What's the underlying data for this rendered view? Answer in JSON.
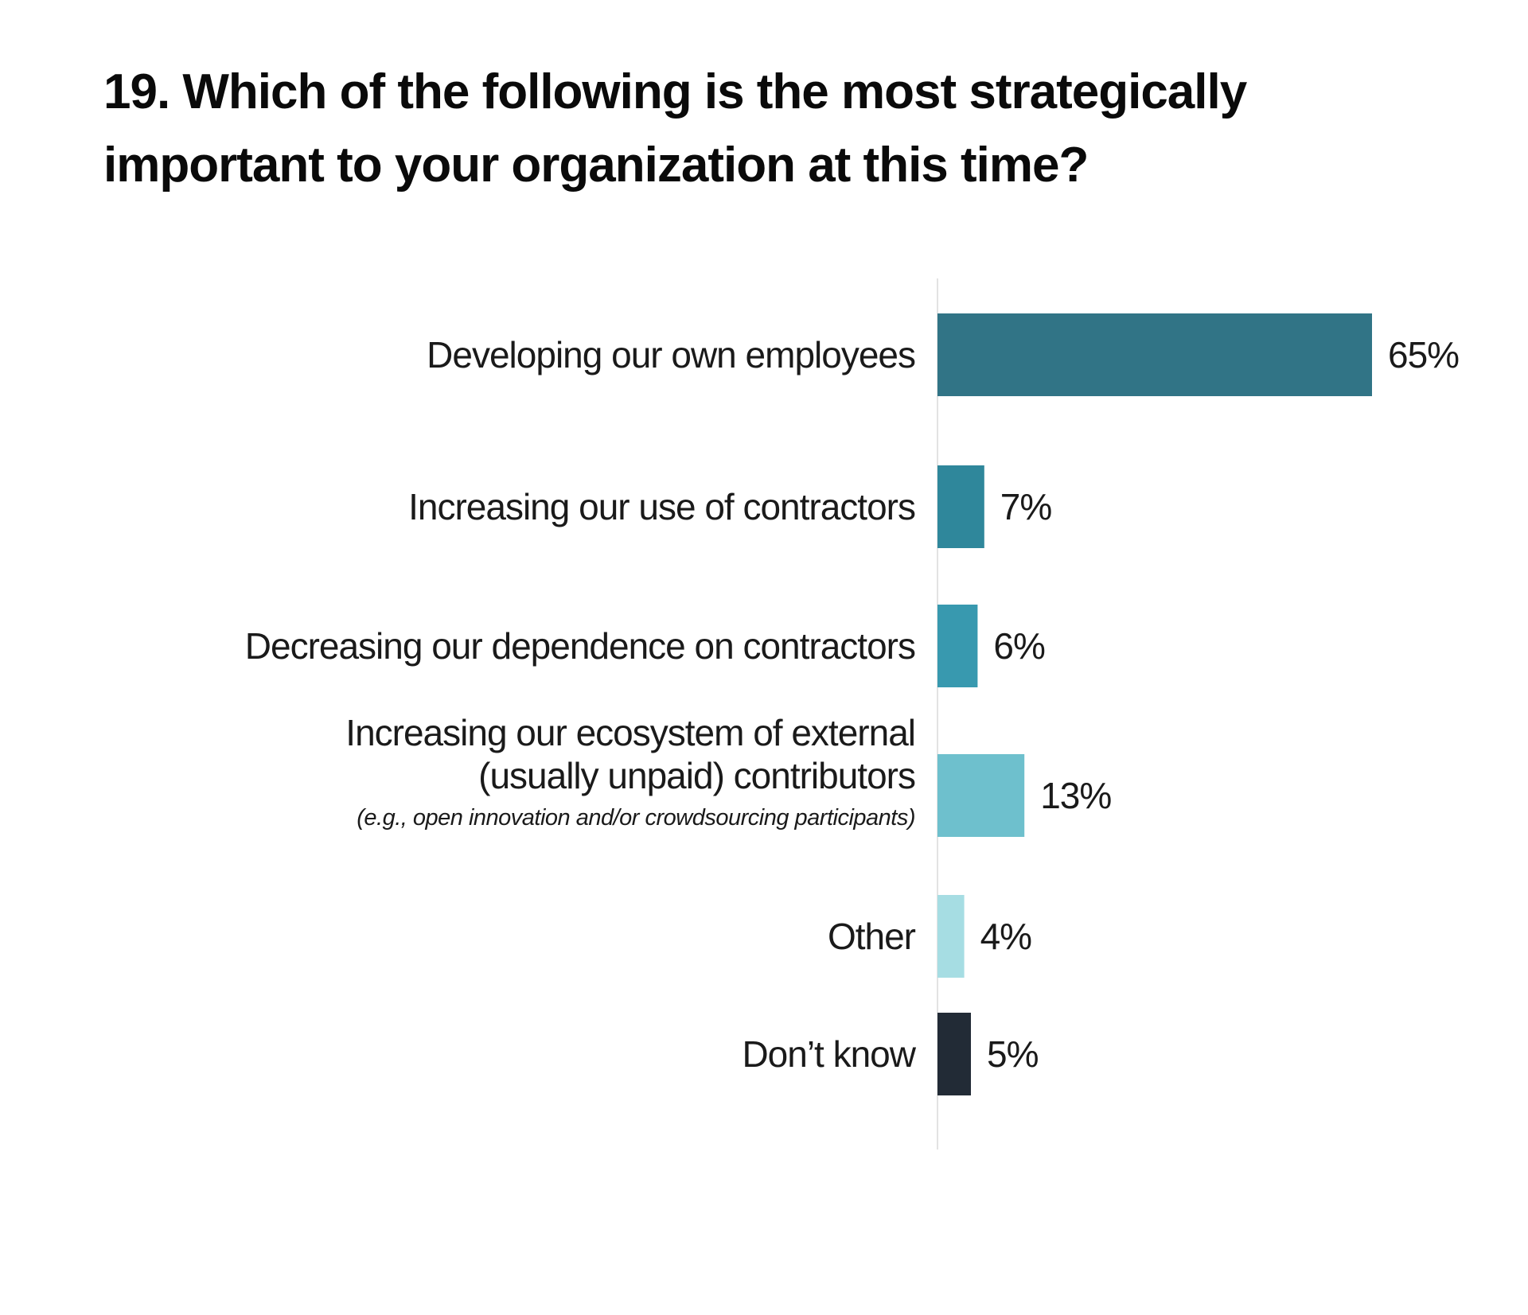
{
  "title": {
    "line1": "19. Which of the following is the most strategically",
    "line2": "important to your organization at this time?"
  },
  "chart_data": {
    "type": "bar",
    "orientation": "horizontal",
    "title": "19. Which of the following is the most strategically important to your organization at this time?",
    "xlabel": "",
    "ylabel": "",
    "xlim": [
      0,
      65
    ],
    "grid": false,
    "legend": "none",
    "value_suffix": "%",
    "categories": [
      [
        "Developing our own employees"
      ],
      [
        "Increasing our use of contractors"
      ],
      [
        "Decreasing our dependence on contractors"
      ],
      [
        "Increasing our ecosystem of external",
        "(usually unpaid) contributors"
      ],
      [
        "Other"
      ],
      [
        "Don’t know"
      ]
    ],
    "notes": [
      "",
      "",
      "",
      "(e.g., open innovation and/or crowdsourcing participants)",
      "",
      ""
    ],
    "values": [
      65,
      7,
      6,
      13,
      4,
      5
    ],
    "value_labels": [
      "65%",
      "7%",
      "6%",
      "13%",
      "4%",
      "5%"
    ],
    "colors": [
      "#317486",
      "#2f879b",
      "#3899af",
      "#6ec0cd",
      "#a6dde3",
      "#222b36"
    ],
    "axis_color": "#e3e3e3"
  }
}
